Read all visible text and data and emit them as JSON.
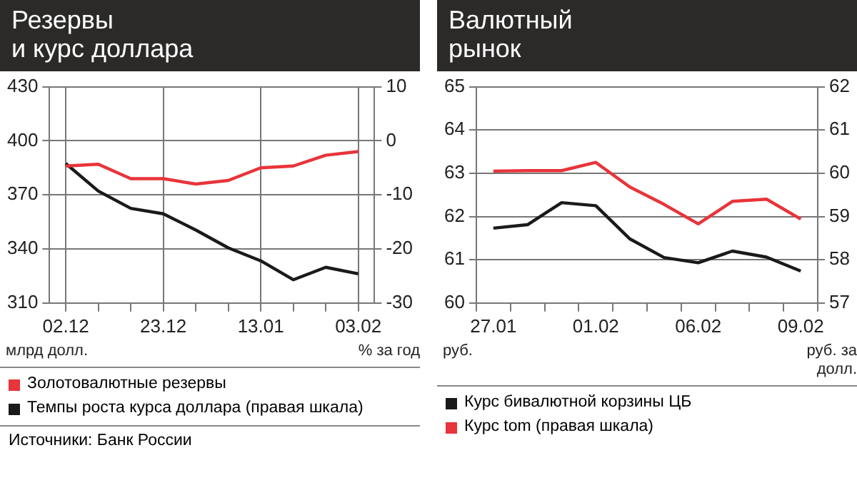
{
  "chart_data": [
    {
      "type": "line",
      "title": "Резервы\nи курс доллара",
      "ylabel": "млрд долл.",
      "y2label": "% за год",
      "categories": [
        "02.12",
        null,
        null,
        "23.12",
        null,
        null,
        "13.01",
        null,
        null,
        "03.02"
      ],
      "series": [
        {
          "name": "Золотовалютные резервы",
          "color": "#e8343a",
          "values": [
            386,
            387,
            379,
            379,
            376,
            378,
            385,
            386,
            392,
            394
          ]
        },
        {
          "name": "Темпы роста курса доллара (правая шкала)",
          "color": "#1a1a1a",
          "axis": "y2",
          "values": [
            -4.2,
            -9.3,
            -12.5,
            -13.5,
            -16.5,
            -19.8,
            -22.2,
            -25.7,
            -23.4,
            -24.6
          ]
        }
      ],
      "ylim": [
        310,
        430
      ],
      "yticks": [
        310,
        340,
        370,
        400,
        430
      ],
      "y2lim": [
        -30,
        10
      ],
      "y2ticks": [
        -30,
        -20,
        -10,
        0,
        10
      ],
      "grid": true,
      "legend": "bottom",
      "marker": "none",
      "line_style": "solid",
      "annotations": [
        "Источники: Банк России"
      ]
    },
    {
      "type": "line",
      "title": "Валютный\nрынок",
      "ylabel": "руб.",
      "y2label": "руб. за долл.",
      "categories": [
        "27.01",
        null,
        null,
        "01.02",
        null,
        null,
        "06.02",
        null,
        null,
        "09.02"
      ],
      "series": [
        {
          "name": "Курс бивалютной корзины ЦБ",
          "color": "#1a1a1a",
          "values": [
            61.73,
            61.81,
            62.32,
            62.25,
            61.48,
            61.05,
            60.93,
            61.2,
            61.06,
            60.74
          ]
        },
        {
          "name": "Курс tom (правая шкала)",
          "color": "#e8343a",
          "axis": "y2",
          "values": [
            60.05,
            60.06,
            60.06,
            60.25,
            59.68,
            59.28,
            58.83,
            59.35,
            59.4,
            58.94
          ]
        }
      ],
      "ylim": [
        60,
        65
      ],
      "yticks": [
        60,
        61,
        62,
        63,
        64,
        65
      ],
      "y2lim": [
        57,
        62
      ],
      "y2ticks": [
        57,
        58,
        59,
        60,
        61,
        62
      ],
      "grid": "y",
      "legend": "bottom",
      "marker": "none",
      "line_style": "solid"
    }
  ]
}
